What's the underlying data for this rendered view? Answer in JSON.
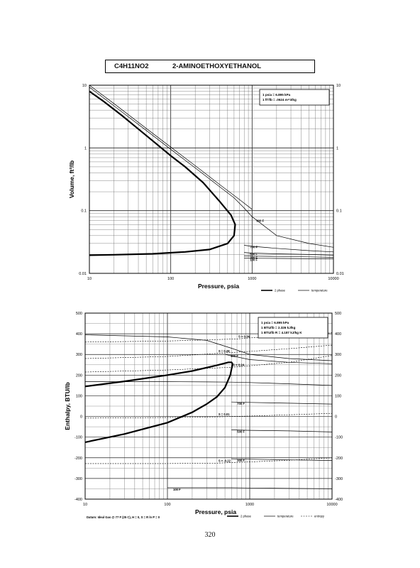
{
  "header": {
    "formula": "C4H11NO2",
    "name": "2-AMINOETHOXYETHANOL"
  },
  "page_number": "320",
  "footer_datum": "Datum: Ideal Gas @ 77 F (25 C), H = 0, S = R ln P = 0",
  "chart_data": [
    {
      "type": "line",
      "xscale": "log",
      "yscale": "log",
      "xlim": [
        10,
        10000
      ],
      "ylim": [
        0.01,
        10
      ],
      "xlabel": "Pressure,  psia",
      "ylabel": "Volume, ft^3/lb",
      "x_ticks": [
        "10",
        "100",
        "1000",
        "10000"
      ],
      "y_ticks": [
        "0.01",
        "0.1",
        "1",
        "10"
      ],
      "y_ticks_right": [
        "0.01",
        "0.1",
        "1",
        "10"
      ],
      "legend": [
        "2 phase",
        "temperature"
      ],
      "conversions": [
        "1 psia = 6.895 kPa",
        "1 ft^3/lb = .0624 m^3/kg"
      ],
      "series": [
        {
          "role": "2 phase",
          "x": [
            10,
            15,
            25,
            40,
            60,
            100,
            150,
            250,
            400,
            550,
            620,
            600,
            500,
            300,
            150,
            60,
            20,
            10
          ],
          "y": [
            8,
            5.5,
            3.3,
            2.0,
            1.3,
            0.75,
            0.5,
            0.28,
            0.14,
            0.085,
            0.06,
            0.04,
            0.03,
            0.024,
            0.022,
            0.0205,
            0.0198,
            0.0195
          ]
        },
        {
          "role": "temperature",
          "x": [
            10,
            20,
            50,
            100,
            200,
            400,
            600,
            800,
            1000,
            2000,
            5000,
            10000
          ],
          "y": [
            9.3,
            4.7,
            1.9,
            0.95,
            0.48,
            0.24,
            0.16,
            0.11,
            0.08,
            0.04,
            0.03,
            0.026
          ]
        },
        {
          "role": "temperature",
          "x": [
            10,
            20,
            50,
            100,
            200,
            400,
            700,
            1000
          ],
          "y": [
            10,
            5.1,
            2.05,
            1.03,
            0.52,
            0.26,
            0.15,
            0.105
          ]
        },
        {
          "role": "temperature",
          "label": "700 F",
          "x": [
            800,
            1000,
            2000,
            5000,
            10000
          ],
          "y": [
            0.028,
            0.027,
            0.025,
            0.023,
            0.022
          ]
        },
        {
          "role": "temperature",
          "label": "500 F",
          "x": [
            800,
            1000,
            2000,
            5000,
            10000
          ],
          "y": [
            0.0215,
            0.021,
            0.0205,
            0.02,
            0.0195
          ]
        },
        {
          "role": "temperature",
          "label": "300 F",
          "x": [
            800,
            1000,
            2000,
            5000,
            10000
          ],
          "y": [
            0.019,
            0.0188,
            0.0186,
            0.0183,
            0.018
          ]
        },
        {
          "role": "temperature",
          "label": "100 F",
          "x": [
            800,
            1000,
            2000,
            5000,
            10000
          ],
          "y": [
            0.0175,
            0.0174,
            0.0173,
            0.0171,
            0.017
          ]
        }
      ],
      "annotations": [
        {
          "text": "900 F",
          "x": 1000,
          "y": 0.07
        }
      ]
    },
    {
      "type": "line",
      "xscale": "log",
      "yscale": "linear",
      "xlim": [
        10,
        10000
      ],
      "ylim": [
        -400,
        500
      ],
      "xlabel": "Pressure,  psia",
      "ylabel": "Enthalpy, BTU/lb",
      "x_ticks": [
        "10",
        "100",
        "1000",
        "10000"
      ],
      "y_ticks": [
        "-400",
        "-300",
        "-200",
        "-100",
        "0",
        "100",
        "200",
        "300",
        "400",
        "500"
      ],
      "y_ticks_right": [
        "-400",
        "-300",
        "-200",
        "-100",
        "0",
        "100",
        "200",
        "300",
        "400",
        "500"
      ],
      "legend": [
        "2 phase",
        "temperature",
        "entropy"
      ],
      "conversions": [
        "1 psia = 6.895 kPa",
        "1 BTU/lb = 2.326 kJ/kg",
        "1 BTU/lb R = 4.187 kJ/kg K"
      ],
      "series": [
        {
          "role": "2 phase",
          "x": [
            10,
            30,
            100,
            200,
            400,
            550,
            600,
            620
          ],
          "y": [
            145,
            170,
            200,
            220,
            248,
            262,
            262,
            255
          ]
        },
        {
          "role": "2 phase",
          "x": [
            10,
            30,
            100,
            200,
            300,
            400,
            500,
            580,
            620
          ],
          "y": [
            -125,
            -85,
            -30,
            20,
            60,
            95,
            140,
            200,
            255
          ]
        },
        {
          "role": "temperature",
          "x": [
            10,
            100,
            300,
            600,
            1000,
            3000,
            10000
          ],
          "y": [
            168,
            168,
            167,
            166,
            164,
            158,
            150
          ]
        },
        {
          "role": "temperature",
          "x": [
            10,
            100,
            300,
            600,
            1000,
            3000,
            10000
          ],
          "y": [
            395,
            385,
            368,
            330,
            300,
            280,
            270
          ]
        },
        {
          "role": "temperature",
          "label": "900 F",
          "x": [
            500,
            1000,
            3000,
            10000
          ],
          "y": [
            300,
            275,
            262,
            255
          ]
        },
        {
          "role": "temperature",
          "label": "700 F",
          "x": [
            600,
            1000,
            3000,
            10000
          ],
          "y": [
            70,
            68,
            64,
            60
          ]
        },
        {
          "role": "temperature",
          "label": "500 F",
          "x": [
            600,
            1000,
            3000,
            10000
          ],
          "y": [
            -65,
            -67,
            -70,
            -75
          ]
        },
        {
          "role": "temperature",
          "label": "300 F",
          "x": [
            600,
            1000,
            3000,
            10000
          ],
          "y": [
            -205,
            -207,
            -210,
            -213
          ]
        },
        {
          "role": "temperature",
          "label": "100 F",
          "x": [
            100,
            600,
            1000,
            3000,
            10000
          ],
          "y": [
            -345,
            -345,
            -346,
            -348,
            -350
          ]
        },
        {
          "role": "entropy",
          "label": "S = 0.34",
          "x": [
            10,
            100,
            700,
            1000,
            3000,
            10000
          ],
          "y": [
            360,
            365,
            375,
            380,
            390,
            405
          ]
        },
        {
          "role": "entropy",
          "label": "S = 0.28",
          "x": [
            10,
            100,
            400,
            1000,
            3000,
            10000
          ],
          "y": [
            280,
            290,
            305,
            315,
            328,
            345
          ]
        },
        {
          "role": "entropy",
          "label": "S = 0.24",
          "x": [
            10,
            100,
            600,
            1000,
            3000,
            10000
          ],
          "y": [
            215,
            225,
            238,
            245,
            262,
            295
          ]
        },
        {
          "role": "entropy",
          "label": "S = 0.01",
          "x": [
            10,
            100,
            400,
            1000,
            3000,
            10000
          ],
          "y": [
            -8,
            -5,
            -2,
            2,
            8,
            15
          ]
        },
        {
          "role": "entropy",
          "label": "S = -0.22",
          "x": [
            10,
            100,
            400,
            1000,
            3000,
            10000
          ],
          "y": [
            -228,
            -228,
            -226,
            -220,
            -212,
            -200
          ]
        }
      ]
    }
  ]
}
